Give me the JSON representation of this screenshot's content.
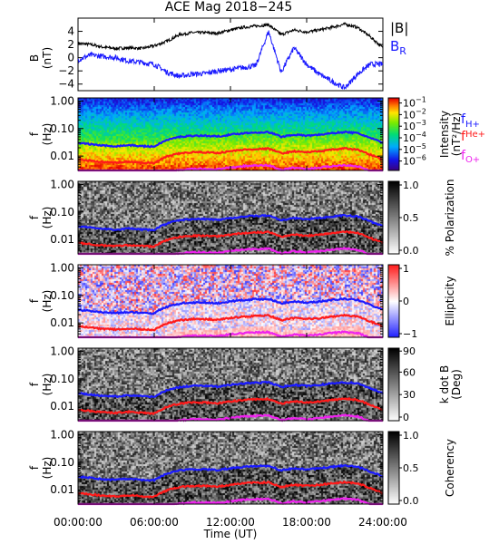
{
  "title": "ACE Mag 2018−245",
  "colors": {
    "axis": "#000000",
    "field_magnitude": "#000000",
    "field_radial": "#1a1aff",
    "f_h": "#1a1aff",
    "f_he": "#ff1a1a",
    "f_o": "#ee22ee"
  },
  "x_axis": {
    "label": "Time (UT)",
    "ticks": [
      "00:00:00",
      "06:00:00",
      "12:00:00",
      "18:00:00",
      "24:00:00"
    ],
    "tick_hours": [
      0,
      6,
      12,
      18,
      24
    ],
    "range_hours": [
      0,
      24
    ]
  },
  "panel_b": {
    "ylabel_line1": "B",
    "ylabel_line2": "(nT)",
    "ylim": [
      -5,
      6
    ],
    "yticks": [
      "4",
      "2",
      "0",
      "−2",
      "−4"
    ],
    "ytick_values": [
      4,
      2,
      0,
      -2,
      -4
    ],
    "legend_b": "|B|",
    "legend_br_main": "B",
    "legend_br_sub": "R"
  },
  "freq_axis": {
    "ylabel_line1": "f",
    "ylabel_line2": "(Hz)",
    "yticks": [
      "1.00",
      "0.10",
      "0.01"
    ],
    "ytick_values": [
      1.0,
      0.1,
      0.01
    ],
    "ylim": [
      0.003,
      1.3
    ],
    "scale": "log"
  },
  "panels": [
    {
      "name": "intensity",
      "scheme": "rainbow",
      "cbar_label_line1": "Intensity",
      "cbar_label_line2": "(nT²/Hz)",
      "cbar_ticks": [
        {
          "base": "10",
          "exp": "−1",
          "frac": 0.07
        },
        {
          "base": "10",
          "exp": "−2",
          "frac": 0.23
        },
        {
          "base": "10",
          "exp": "−3",
          "frac": 0.39
        },
        {
          "base": "10",
          "exp": "−4",
          "frac": 0.55
        },
        {
          "base": "10",
          "exp": "−5",
          "frac": 0.71
        },
        {
          "base": "10",
          "exp": "−6",
          "frac": 0.87
        }
      ]
    },
    {
      "name": "polarization",
      "scheme": "gray",
      "cbar_label_line1": "% Polarization",
      "cbar_label_line2": "",
      "cbar_ticks": [
        {
          "base": "1.0",
          "exp": "",
          "frac": 0.05
        },
        {
          "base": "0.5",
          "exp": "",
          "frac": 0.5
        },
        {
          "base": "0.0",
          "exp": "",
          "frac": 0.95
        }
      ]
    },
    {
      "name": "ellipticity",
      "scheme": "bwr",
      "cbar_label_line1": "Ellipticity",
      "cbar_label_line2": "",
      "cbar_ticks": [
        {
          "base": "1",
          "exp": "",
          "frac": 0.05
        },
        {
          "base": "0",
          "exp": "",
          "frac": 0.5
        },
        {
          "base": "−1",
          "exp": "",
          "frac": 0.95
        }
      ]
    },
    {
      "name": "kdotb",
      "scheme": "gray",
      "cbar_label_line1": "k dot B",
      "cbar_label_line2": "(Deg)",
      "cbar_ticks": [
        {
          "base": "90",
          "exp": "",
          "frac": 0.04
        },
        {
          "base": "60",
          "exp": "",
          "frac": 0.33
        },
        {
          "base": "30",
          "exp": "",
          "frac": 0.64
        },
        {
          "base": "0",
          "exp": "",
          "frac": 0.95
        }
      ]
    },
    {
      "name": "coherency",
      "scheme": "gray",
      "cbar_label_line1": "Coherency",
      "cbar_label_line2": "",
      "cbar_ticks": [
        {
          "base": "1.0",
          "exp": "",
          "frac": 0.05
        },
        {
          "base": "0.5",
          "exp": "",
          "frac": 0.5
        },
        {
          "base": "0.0",
          "exp": "",
          "frac": 0.95
        }
      ]
    }
  ],
  "gyro_legend": [
    {
      "main": "f",
      "sub": "H+",
      "color_key": "f_h"
    },
    {
      "main": "f",
      "sub": "He+",
      "color_key": "f_he"
    },
    {
      "main": "f",
      "sub": "O+",
      "color_key": "f_o"
    }
  ],
  "chart_data": {
    "type": "line",
    "title": "ACE Mag 2018−245",
    "xlabel": "Time (UT)",
    "x_unit": "hours UT",
    "ylabel": "B (nT)",
    "ylim": [
      -5,
      6
    ],
    "x": [
      0,
      1,
      2,
      3,
      4,
      5,
      6,
      7,
      8,
      9,
      10,
      11,
      12,
      13,
      14,
      15,
      16,
      17,
      18,
      19,
      20,
      21,
      22,
      23,
      24
    ],
    "series": [
      {
        "name": "|B|",
        "values": [
          2.2,
          2.0,
          1.6,
          1.4,
          1.5,
          1.4,
          1.8,
          2.5,
          3.5,
          3.8,
          3.8,
          3.7,
          4.2,
          4.6,
          4.8,
          5.0,
          3.5,
          4.2,
          3.9,
          4.2,
          4.6,
          5.1,
          4.6,
          3.2,
          1.5
        ]
      },
      {
        "name": "B_R",
        "values": [
          -0.3,
          0.4,
          0.2,
          0.0,
          -0.5,
          -0.7,
          -1.0,
          -2.2,
          -2.8,
          -2.5,
          -2.4,
          -2.0,
          -1.8,
          -1.5,
          -1.2,
          4.0,
          -2.2,
          1.5,
          -1.0,
          -2.5,
          -3.6,
          -4.6,
          -2.5,
          -1.0,
          -1.0
        ]
      }
    ],
    "gyrofrequencies": {
      "x_hours": [
        0,
        1,
        2,
        3,
        4,
        5,
        6,
        7,
        8,
        9,
        10,
        11,
        12,
        13,
        14,
        15,
        16,
        17,
        18,
        19,
        20,
        21,
        22,
        23,
        24
      ],
      "f_H+_hz": [
        0.03,
        0.027,
        0.024,
        0.023,
        0.025,
        0.023,
        0.022,
        0.038,
        0.05,
        0.055,
        0.055,
        0.052,
        0.06,
        0.068,
        0.072,
        0.074,
        0.05,
        0.06,
        0.055,
        0.06,
        0.068,
        0.075,
        0.068,
        0.045,
        0.03
      ],
      "f_He+_hz": [
        0.0075,
        0.0068,
        0.006,
        0.0058,
        0.0063,
        0.0058,
        0.0055,
        0.0095,
        0.0125,
        0.0138,
        0.0138,
        0.013,
        0.015,
        0.017,
        0.018,
        0.0185,
        0.0125,
        0.015,
        0.0138,
        0.015,
        0.017,
        0.019,
        0.017,
        0.0112,
        0.0075
      ],
      "f_O+_hz": [
        0.0019,
        0.0017,
        0.0015,
        0.0014,
        0.0016,
        0.0014,
        0.0014,
        0.0024,
        0.0031,
        0.0034,
        0.0034,
        0.0033,
        0.0038,
        0.0043,
        0.0045,
        0.0046,
        0.0031,
        0.0038,
        0.0034,
        0.0038,
        0.0043,
        0.0047,
        0.0043,
        0.0028,
        0.0019
      ]
    },
    "freq_ylim": [
      0.003,
      1.3
    ],
    "freq_scale": "log",
    "colorbars": {
      "intensity_range": [
        1e-06,
        0.1
      ],
      "polarization_range": [
        0.0,
        1.0
      ],
      "ellipticity_range": [
        -1,
        1
      ],
      "kdotb_range_deg": [
        0,
        90
      ],
      "coherency_range": [
        0.0,
        1.0
      ]
    }
  }
}
